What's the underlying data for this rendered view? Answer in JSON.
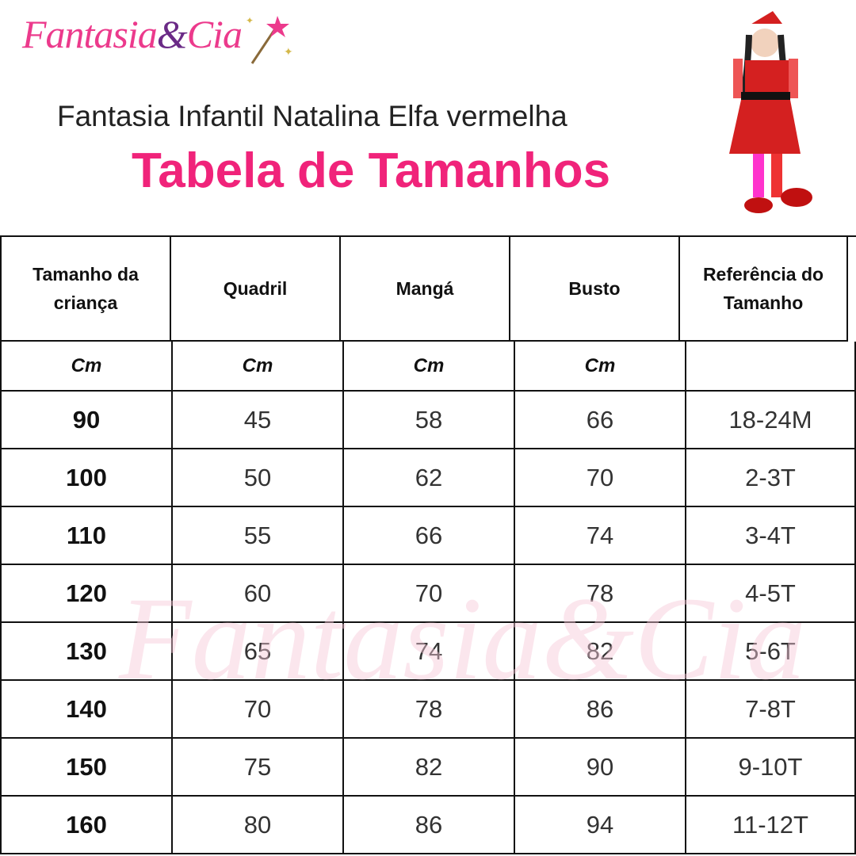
{
  "header": {
    "logo": {
      "brand": "Fantasia",
      "ampersand": "&",
      "suffix": "Cia"
    },
    "subtitle": "Fantasia Infantil Natalina Elfa vermelha",
    "title": "Tabela de Tamanhos"
  },
  "table": {
    "headers": [
      "Tamanho da criança",
      "Quadril",
      "Mangá",
      "Busto",
      "Referência do Tamanho"
    ],
    "units": [
      "Cm",
      "Cm",
      "Cm",
      "Cm"
    ],
    "rows": [
      [
        90,
        45,
        58,
        66,
        "18-24M"
      ],
      [
        100,
        50,
        62,
        70,
        "2-3T"
      ],
      [
        110,
        55,
        66,
        74,
        "3-4T"
      ],
      [
        120,
        60,
        70,
        78,
        "4-5T"
      ],
      [
        130,
        65,
        74,
        82,
        "5-6T"
      ],
      [
        140,
        70,
        78,
        86,
        "7-8T"
      ],
      [
        150,
        75,
        82,
        90,
        "9-10T"
      ],
      [
        160,
        80,
        86,
        94,
        "11-12T"
      ]
    ]
  }
}
